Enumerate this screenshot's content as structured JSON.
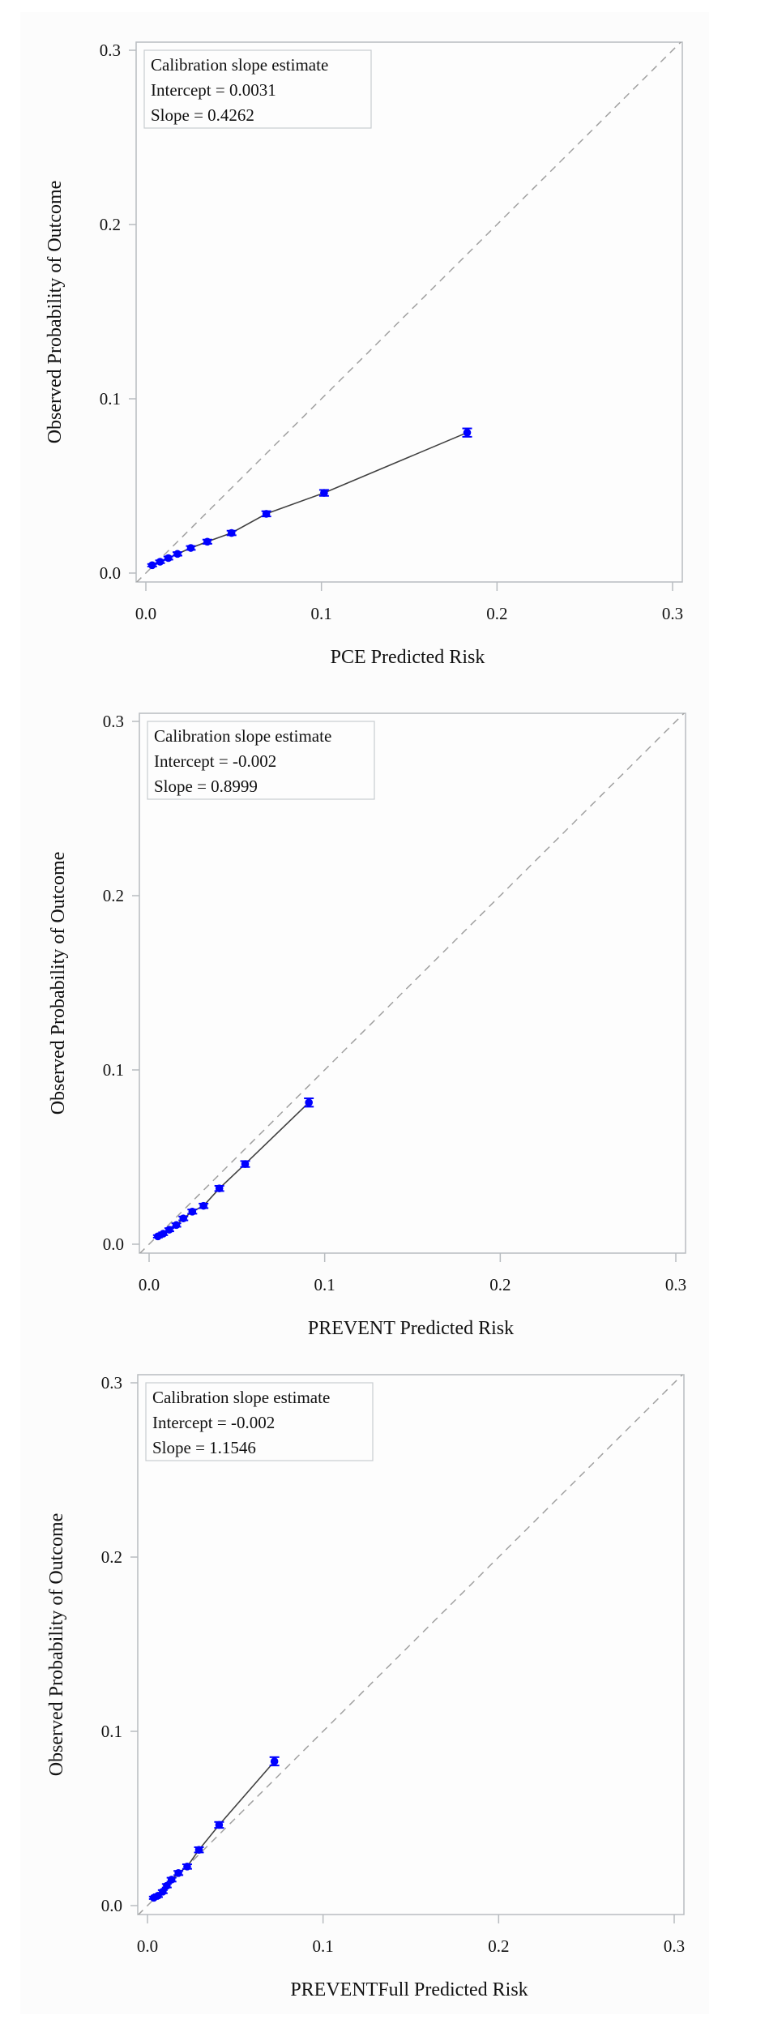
{
  "chart_data": [
    {
      "type": "line",
      "xlabel": "PCE Predicted Risk",
      "ylabel": "Observed Probability of Outcome",
      "xlim": [
        0,
        0.3
      ],
      "ylim": [
        0,
        0.3
      ],
      "xticks": [
        "0.0",
        "0.1",
        "0.2",
        "0.3"
      ],
      "yticks": [
        "0.0",
        "0.1",
        "0.2",
        "0.3"
      ],
      "reference_line": "y = x (dashed)",
      "legend": {
        "placement": "top-left",
        "lines": [
          "Calibration slope estimate",
          "Intercept = 0.0031",
          "Slope = 0.4262"
        ]
      },
      "points": [
        {
          "x": 0.0036,
          "y": 0.0045,
          "lo": 0.0038,
          "hi": 0.0052
        },
        {
          "x": 0.0081,
          "y": 0.0065,
          "lo": 0.0057,
          "hi": 0.0073
        },
        {
          "x": 0.0128,
          "y": 0.0086,
          "lo": 0.0077,
          "hi": 0.0095
        },
        {
          "x": 0.018,
          "y": 0.011,
          "lo": 0.01,
          "hi": 0.012
        },
        {
          "x": 0.0256,
          "y": 0.0144,
          "lo": 0.0133,
          "hi": 0.0155
        },
        {
          "x": 0.035,
          "y": 0.018,
          "lo": 0.0168,
          "hi": 0.0192
        },
        {
          "x": 0.0488,
          "y": 0.023,
          "lo": 0.0217,
          "hi": 0.0243
        },
        {
          "x": 0.0686,
          "y": 0.034,
          "lo": 0.0325,
          "hi": 0.0355
        },
        {
          "x": 0.1015,
          "y": 0.046,
          "lo": 0.0443,
          "hi": 0.0477
        },
        {
          "x": 0.183,
          "y": 0.0806,
          "lo": 0.0782,
          "hi": 0.083
        }
      ],
      "colors": {
        "marker": "#0000ff",
        "line": "#404040",
        "reference": "#a0a0a0",
        "frame": "#b8bcc0"
      }
    },
    {
      "type": "line",
      "xlabel": "PREVENT Predicted Risk",
      "ylabel": "Observed Probability of Outcome",
      "xlim": [
        0,
        0.3
      ],
      "ylim": [
        0,
        0.3
      ],
      "xticks": [
        "0.0",
        "0.1",
        "0.2",
        "0.3"
      ],
      "yticks": [
        "0.0",
        "0.1",
        "0.2",
        "0.3"
      ],
      "reference_line": "y = x (dashed)",
      "legend": {
        "placement": "top-left",
        "lines": [
          "Calibration slope estimate",
          "Intercept = -0.002",
          "Slope = 0.8999"
        ]
      },
      "points": [
        {
          "x": 0.005,
          "y": 0.0045,
          "lo": 0.0038,
          "hi": 0.0052
        },
        {
          "x": 0.008,
          "y": 0.006,
          "lo": 0.0052,
          "hi": 0.0068
        },
        {
          "x": 0.0115,
          "y": 0.0083,
          "lo": 0.0074,
          "hi": 0.0092
        },
        {
          "x": 0.0155,
          "y": 0.011,
          "lo": 0.01,
          "hi": 0.012
        },
        {
          "x": 0.0195,
          "y": 0.0148,
          "lo": 0.0137,
          "hi": 0.0159
        },
        {
          "x": 0.0246,
          "y": 0.0187,
          "lo": 0.0175,
          "hi": 0.0199
        },
        {
          "x": 0.031,
          "y": 0.022,
          "lo": 0.0207,
          "hi": 0.0233
        },
        {
          "x": 0.04,
          "y": 0.032,
          "lo": 0.0305,
          "hi": 0.0335
        },
        {
          "x": 0.0547,
          "y": 0.046,
          "lo": 0.0443,
          "hi": 0.0477
        },
        {
          "x": 0.091,
          "y": 0.0813,
          "lo": 0.0789,
          "hi": 0.0837
        }
      ],
      "colors": {
        "marker": "#0000ff",
        "line": "#404040",
        "reference": "#a0a0a0",
        "frame": "#b8bcc0"
      }
    },
    {
      "type": "line",
      "xlabel": "PREVENTFull Predicted Risk",
      "ylabel": "Observed Probability of Outcome",
      "xlim": [
        0,
        0.3
      ],
      "ylim": [
        0,
        0.3
      ],
      "xticks": [
        "0.0",
        "0.1",
        "0.2",
        "0.3"
      ],
      "yticks": [
        "0.0",
        "0.1",
        "0.2",
        "0.3"
      ],
      "reference_line": "y = x (dashed)",
      "legend": {
        "placement": "top-left",
        "lines": [
          "Calibration slope estimate",
          "Intercept = -0.002",
          "Slope = 1.1546"
        ]
      },
      "points": [
        {
          "x": 0.0036,
          "y": 0.0045,
          "lo": 0.0038,
          "hi": 0.0052
        },
        {
          "x": 0.006,
          "y": 0.0057,
          "lo": 0.0049,
          "hi": 0.0065
        },
        {
          "x": 0.0087,
          "y": 0.008,
          "lo": 0.0071,
          "hi": 0.0089
        },
        {
          "x": 0.011,
          "y": 0.0114,
          "lo": 0.0104,
          "hi": 0.0124
        },
        {
          "x": 0.0137,
          "y": 0.0149,
          "lo": 0.0138,
          "hi": 0.016
        },
        {
          "x": 0.0176,
          "y": 0.0187,
          "lo": 0.0175,
          "hi": 0.0199
        },
        {
          "x": 0.0226,
          "y": 0.0224,
          "lo": 0.0211,
          "hi": 0.0237
        },
        {
          "x": 0.0293,
          "y": 0.032,
          "lo": 0.0305,
          "hi": 0.0335
        },
        {
          "x": 0.0408,
          "y": 0.0463,
          "lo": 0.0446,
          "hi": 0.048
        },
        {
          "x": 0.0723,
          "y": 0.0828,
          "lo": 0.0804,
          "hi": 0.0852
        }
      ],
      "colors": {
        "marker": "#0000ff",
        "line": "#404040",
        "reference": "#a0a0a0",
        "frame": "#b8bcc0"
      }
    }
  ]
}
